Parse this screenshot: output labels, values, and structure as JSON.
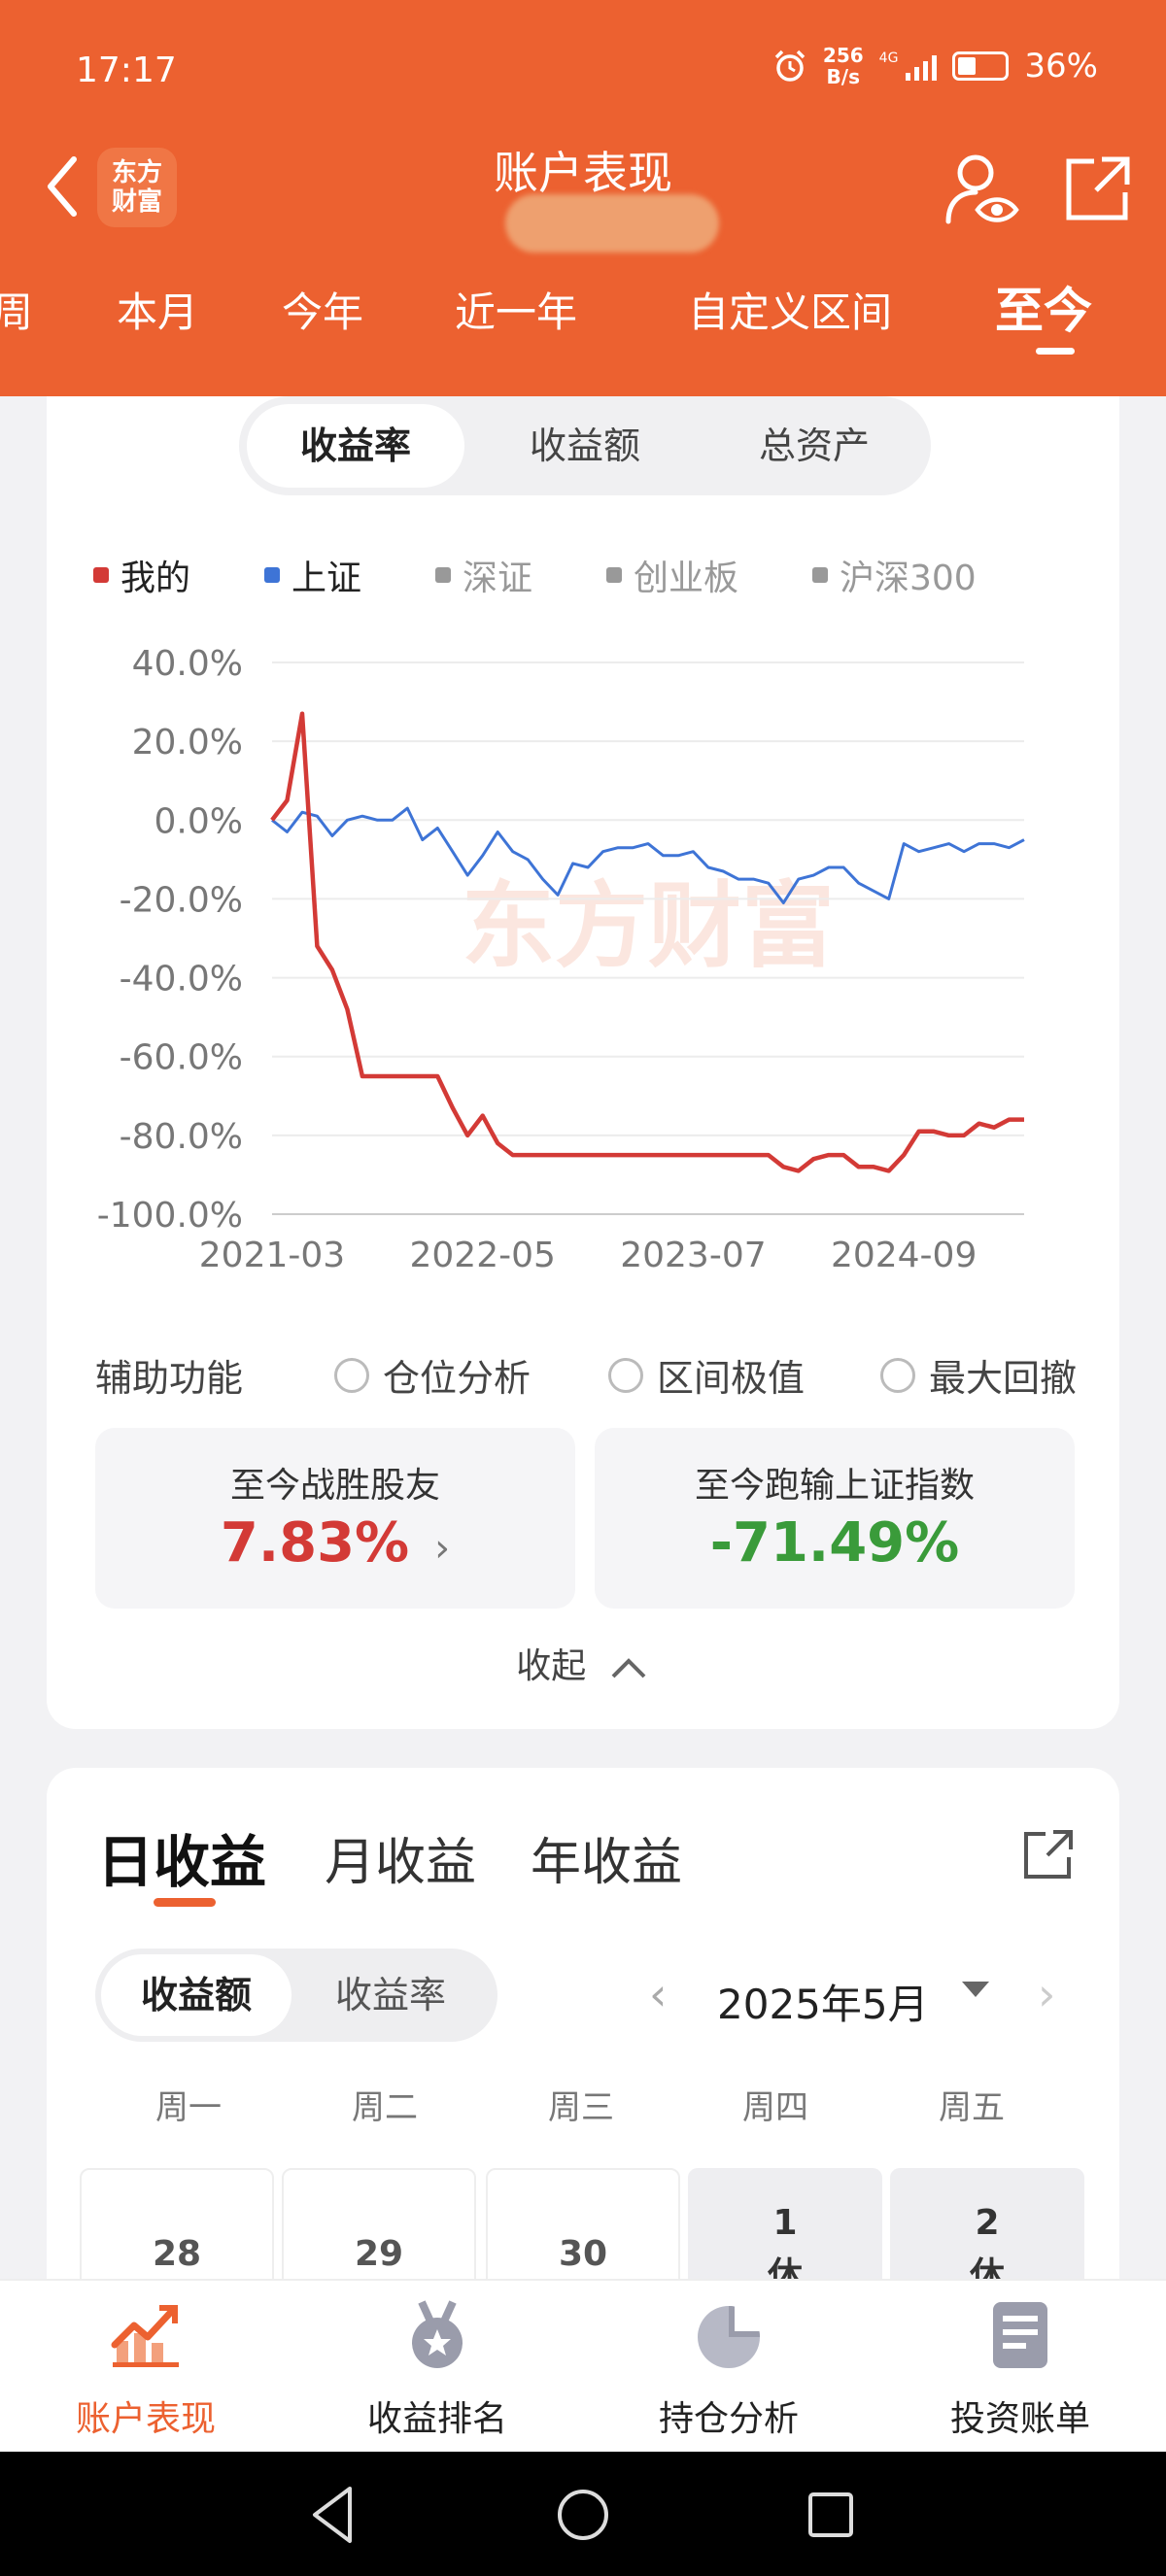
{
  "status_bar": {
    "time": "17:17",
    "net_speed": "256",
    "net_unit": "B/s",
    "network": "4G",
    "battery": "36%"
  },
  "header": {
    "title": "账户表现",
    "logo_line1": "东方",
    "logo_line2": "财富"
  },
  "period_tabs": {
    "items": [
      "周",
      "本月",
      "今年",
      "近一年",
      "自定义区间",
      "至今"
    ],
    "active": "至今"
  },
  "metric_toggle": {
    "items": [
      "收益率",
      "收益额",
      "总资产"
    ],
    "active": "收益率"
  },
  "legend": {
    "items": [
      {
        "label": "我的",
        "color": "#d33a36",
        "on": true
      },
      {
        "label": "上证",
        "color": "#3e74d6",
        "on": true
      },
      {
        "label": "深证",
        "color": "#999999",
        "on": false
      },
      {
        "label": "创业板",
        "color": "#999999",
        "on": false
      },
      {
        "label": "沪深300",
        "color": "#999999",
        "on": false
      }
    ]
  },
  "chart_watermark": "东方财富",
  "chart_data": {
    "type": "line",
    "title": "",
    "xlabel": "",
    "ylabel": "",
    "x_ticks": [
      "2021-03",
      "2022-05",
      "2023-07",
      "2024-09"
    ],
    "y_ticks": [
      "40.0%",
      "20.0%",
      "0.0%",
      "-20.0%",
      "-40.0%",
      "-60.0%",
      "-80.0%",
      "-100.0%"
    ],
    "ylim": [
      -100,
      40
    ],
    "x": [
      "2021-03",
      "2021-04",
      "2021-05",
      "2021-06",
      "2021-07",
      "2021-08",
      "2021-09",
      "2021-10",
      "2021-11",
      "2021-12",
      "2022-01",
      "2022-02",
      "2022-03",
      "2022-04",
      "2022-05",
      "2022-06",
      "2022-07",
      "2022-08",
      "2022-09",
      "2022-10",
      "2022-11",
      "2022-12",
      "2023-01",
      "2023-02",
      "2023-03",
      "2023-04",
      "2023-05",
      "2023-06",
      "2023-07",
      "2023-08",
      "2023-09",
      "2023-10",
      "2023-11",
      "2023-12",
      "2024-01",
      "2024-02",
      "2024-03",
      "2024-04",
      "2024-05",
      "2024-06",
      "2024-07",
      "2024-08",
      "2024-09",
      "2024-10",
      "2024-11",
      "2024-12",
      "2025-01",
      "2025-02",
      "2025-03",
      "2025-04",
      "2025-05"
    ],
    "series": [
      {
        "name": "我的",
        "color": "#d33a36",
        "values": [
          0,
          5,
          27,
          -32,
          -38,
          -48,
          -65,
          -65,
          -65,
          -65,
          -65,
          -65,
          -73,
          -80,
          -75,
          -82,
          -85,
          -85,
          -85,
          -85,
          -85,
          -85,
          -85,
          -85,
          -85,
          -85,
          -85,
          -85,
          -85,
          -85,
          -85,
          -85,
          -85,
          -85,
          -88,
          -89,
          -86,
          -85,
          -85,
          -88,
          -88,
          -89,
          -85,
          -79,
          -79,
          -80,
          -80,
          -77,
          -78,
          -76,
          -76
        ]
      },
      {
        "name": "上证",
        "color": "#3e74d6",
        "values": [
          0,
          -3,
          2,
          1,
          -4,
          0,
          1,
          0,
          0,
          3,
          -5,
          -2,
          -8,
          -14,
          -9,
          -3,
          -8,
          -10,
          -15,
          -19,
          -11,
          -12,
          -8,
          -7,
          -7,
          -6,
          -9,
          -9,
          -8,
          -12,
          -13,
          -15,
          -15,
          -16,
          -21,
          -15,
          -14,
          -12,
          -12,
          -16,
          -18,
          -20,
          -6,
          -8,
          -7,
          -6,
          -8,
          -6,
          -6,
          -7,
          -5
        ]
      }
    ]
  },
  "aux": {
    "label": "辅助功能",
    "options": [
      "仓位分析",
      "区间极值",
      "最大回撤"
    ]
  },
  "stats": {
    "beat_label": "至今战胜股友",
    "beat_value": "7.83%",
    "beat_arrow": "›",
    "vs_label": "至今跑输上证指数",
    "vs_value": "-71.49%"
  },
  "collapse_label": "收起",
  "earnings": {
    "tabs": [
      "日收益",
      "月收益",
      "年收益"
    ],
    "active": "日收益",
    "toggle": [
      "收益额",
      "收益率"
    ],
    "toggle_active": "收益额",
    "month_label": "2025年5月",
    "weekdays": [
      "周一",
      "周二",
      "周三",
      "周四",
      "周五"
    ],
    "days": [
      {
        "num": "28",
        "tag": ""
      },
      {
        "num": "29",
        "tag": ""
      },
      {
        "num": "30",
        "tag": ""
      },
      {
        "num": "1",
        "tag": "休"
      },
      {
        "num": "2",
        "tag": "休"
      }
    ]
  },
  "bottom_tabs": {
    "items": [
      "账户表现",
      "收益排名",
      "持仓分析",
      "投资账单"
    ],
    "active": "账户表现",
    "accent": "#ec6130"
  }
}
